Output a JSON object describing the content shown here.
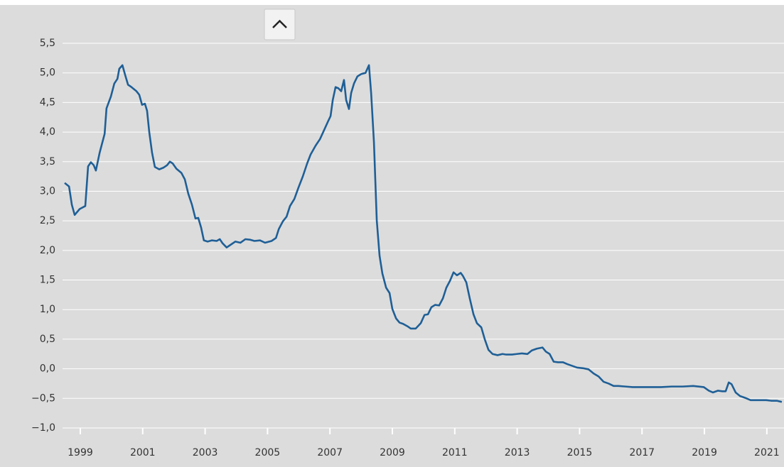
{
  "chart_data": {
    "type": "line",
    "color": "#1f5f96",
    "grid": true,
    "xlim": [
      1999,
      2022.05
    ],
    "xticks": [
      {
        "value": 1999.5,
        "label": "1999"
      },
      {
        "value": 2001.5,
        "label": "2001"
      },
      {
        "value": 2003.5,
        "label": "2003"
      },
      {
        "value": 2005.5,
        "label": "2005"
      },
      {
        "value": 2007.5,
        "label": "2007"
      },
      {
        "value": 2009.5,
        "label": "2009"
      },
      {
        "value": 2011.5,
        "label": "2011"
      },
      {
        "value": 2013.5,
        "label": "2013"
      },
      {
        "value": 2015.5,
        "label": "2015"
      },
      {
        "value": 2017.5,
        "label": "2017"
      },
      {
        "value": 2019.5,
        "label": "2019"
      },
      {
        "value": 2021.5,
        "label": "2021"
      }
    ],
    "ylim": [
      -1.0,
      5.5
    ],
    "yticks": [
      {
        "value": -1.0,
        "label": "−1,0"
      },
      {
        "value": -0.5,
        "label": "−0,5"
      },
      {
        "value": 0.0,
        "label": "0,0"
      },
      {
        "value": 0.5,
        "label": "0,5"
      },
      {
        "value": 1.0,
        "label": "1,0"
      },
      {
        "value": 1.5,
        "label": "1,5"
      },
      {
        "value": 2.0,
        "label": "2,0"
      },
      {
        "value": 2.5,
        "label": "2,5"
      },
      {
        "value": 3.0,
        "label": "3,0"
      },
      {
        "value": 3.5,
        "label": "3,5"
      },
      {
        "value": 4.0,
        "label": "4,0"
      },
      {
        "value": 4.5,
        "label": "4,5"
      },
      {
        "value": 5.0,
        "label": "5,0"
      },
      {
        "value": 5.5,
        "label": "5,5"
      }
    ],
    "x": [
      1999.0,
      1999.14,
      1999.23,
      1999.32,
      1999.48,
      1999.66,
      1999.75,
      1999.84,
      1999.93,
      2000.0,
      2000.12,
      2000.28,
      2000.34,
      2000.48,
      2000.59,
      2000.69,
      2000.75,
      2000.85,
      2000.94,
      2001.03,
      2001.14,
      2001.3,
      2001.39,
      2001.48,
      2001.57,
      2001.64,
      2001.71,
      2001.8,
      2001.89,
      2002.03,
      2002.17,
      2002.28,
      2002.37,
      2002.46,
      2002.58,
      2002.74,
      2002.85,
      2002.96,
      2003.08,
      2003.19,
      2003.28,
      2003.37,
      2003.46,
      2003.58,
      2003.72,
      2003.87,
      2003.97,
      2004.06,
      2004.19,
      2004.33,
      2004.47,
      2004.63,
      2004.79,
      2004.95,
      2005.08,
      2005.26,
      2005.42,
      2005.63,
      2005.77,
      2005.86,
      2005.99,
      2006.11,
      2006.22,
      2006.36,
      2006.49,
      2006.63,
      2006.77,
      2006.88,
      2007.04,
      2007.18,
      2007.31,
      2007.43,
      2007.52,
      2007.59,
      2007.68,
      2007.77,
      2007.86,
      2007.95,
      2008.02,
      2008.11,
      2008.18,
      2008.27,
      2008.38,
      2008.5,
      2008.64,
      2008.75,
      2008.82,
      2008.91,
      2009.0,
      2009.09,
      2009.18,
      2009.3,
      2009.41,
      2009.5,
      2009.62,
      2009.73,
      2009.84,
      2009.98,
      2010.09,
      2010.25,
      2010.41,
      2010.53,
      2010.64,
      2010.75,
      2010.87,
      2011.0,
      2011.12,
      2011.23,
      2011.35,
      2011.46,
      2011.57,
      2011.69,
      2011.76,
      2011.87,
      2011.98,
      2012.1,
      2012.21,
      2012.35,
      2012.46,
      2012.58,
      2012.71,
      2012.87,
      2013.03,
      2013.15,
      2013.33,
      2013.49,
      2013.65,
      2013.83,
      2013.97,
      2014.13,
      2014.31,
      2014.42,
      2014.54,
      2014.67,
      2014.81,
      2014.97,
      2015.1,
      2015.26,
      2015.42,
      2015.61,
      2015.79,
      2015.95,
      2016.11,
      2016.27,
      2016.43,
      2016.59,
      2016.74,
      2016.97,
      2017.2,
      2017.66,
      2018.11,
      2018.45,
      2018.8,
      2019.14,
      2019.48,
      2019.64,
      2019.77,
      2019.93,
      2020.07,
      2020.18,
      2020.28,
      2020.37,
      2020.5,
      2020.64,
      2020.8,
      2020.98,
      2021.12,
      2021.3,
      2021.48,
      2021.64,
      2021.82,
      2021.98
    ],
    "values": [
      3.14,
      3.08,
      2.77,
      2.6,
      2.7,
      2.75,
      3.42,
      3.49,
      3.44,
      3.35,
      3.65,
      3.97,
      4.4,
      4.6,
      4.82,
      4.9,
      5.07,
      5.13,
      4.96,
      4.8,
      4.76,
      4.69,
      4.63,
      4.46,
      4.48,
      4.36,
      4.0,
      3.65,
      3.41,
      3.37,
      3.4,
      3.44,
      3.5,
      3.47,
      3.38,
      3.31,
      3.2,
      2.96,
      2.77,
      2.54,
      2.55,
      2.39,
      2.17,
      2.15,
      2.17,
      2.16,
      2.19,
      2.12,
      2.05,
      2.1,
      2.15,
      2.13,
      2.19,
      2.18,
      2.16,
      2.17,
      2.13,
      2.16,
      2.21,
      2.36,
      2.49,
      2.57,
      2.75,
      2.87,
      3.06,
      3.25,
      3.47,
      3.62,
      3.77,
      3.88,
      4.03,
      4.17,
      4.27,
      4.54,
      4.76,
      4.74,
      4.69,
      4.88,
      4.54,
      4.39,
      4.66,
      4.82,
      4.94,
      4.98,
      5.0,
      5.13,
      4.66,
      3.83,
      2.51,
      1.91,
      1.61,
      1.37,
      1.28,
      1.01,
      0.85,
      0.78,
      0.76,
      0.72,
      0.68,
      0.68,
      0.77,
      0.91,
      0.92,
      1.04,
      1.08,
      1.07,
      1.19,
      1.37,
      1.49,
      1.63,
      1.58,
      1.62,
      1.57,
      1.46,
      1.19,
      0.92,
      0.77,
      0.7,
      0.5,
      0.32,
      0.25,
      0.23,
      0.25,
      0.24,
      0.24,
      0.25,
      0.26,
      0.25,
      0.31,
      0.34,
      0.36,
      0.29,
      0.25,
      0.12,
      0.11,
      0.11,
      0.08,
      0.05,
      0.02,
      0.01,
      -0.01,
      -0.08,
      -0.13,
      -0.22,
      -0.25,
      -0.29,
      -0.29,
      -0.3,
      -0.31,
      -0.31,
      -0.31,
      -0.3,
      -0.3,
      -0.29,
      -0.31,
      -0.37,
      -0.4,
      -0.37,
      -0.38,
      -0.38,
      -0.23,
      -0.26,
      -0.4,
      -0.46,
      -0.49,
      -0.53,
      -0.53,
      -0.53,
      -0.53,
      -0.54,
      -0.54,
      -0.56
    ]
  }
}
